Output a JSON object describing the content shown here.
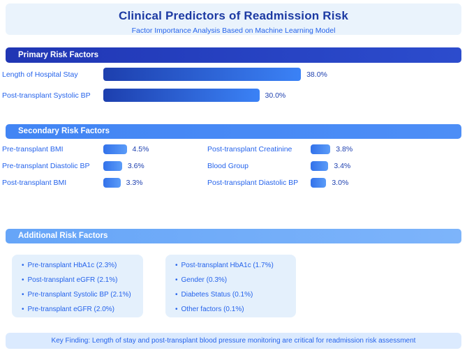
{
  "colors": {
    "title_text": "#1c3aa3",
    "body_text": "#2563eb",
    "value_text": "#1e40af",
    "hero_bg": "#eaf3fc",
    "secondary_header_bg": "#4285f4",
    "additional_header_bg": "#66a5f8",
    "bar_gradient_start": "#1d3fae",
    "bar_gradient_end": "#3b82f6",
    "small_bar_start": "#3372ea",
    "small_bar_end": "#5b9cf8",
    "panel_bg": "#e4f0fc",
    "footer_bg": "#dbeafe"
  },
  "chart_data": {
    "type": "bar",
    "title": "Clinical Predictors of Readmission Risk",
    "subtitle": "Factor Importance Analysis Based on Machine Learning Model",
    "value_unit": "%",
    "axis_max": 40,
    "legend": "none",
    "sections": [
      {
        "heading": "Primary Risk Factors",
        "items": [
          {
            "label": "Length of Hospital Stay",
            "value": 38.0,
            "display": "38.0%"
          },
          {
            "label": "Post-transplant Systolic BP",
            "value": 30.0,
            "display": "30.0%"
          }
        ]
      },
      {
        "heading": "Secondary Risk Factors",
        "columns": [
          [
            {
              "label": "Pre-transplant BMI",
              "value": 4.5,
              "display": "4.5%"
            },
            {
              "label": "Pre-transplant Diastolic BP",
              "value": 3.6,
              "display": "3.6%"
            },
            {
              "label": "Post-transplant BMI",
              "value": 3.3,
              "display": "3.3%"
            }
          ],
          [
            {
              "label": "Post-transplant Creatinine",
              "value": 3.8,
              "display": "3.8%"
            },
            {
              "label": "Blood Group",
              "value": 3.4,
              "display": "3.4%"
            },
            {
              "label": "Post-transplant Diastolic BP",
              "value": 3.0,
              "display": "3.0%"
            }
          ]
        ]
      },
      {
        "heading": "Additional Risk Factors",
        "columns": [
          [
            {
              "label": "Pre-transplant HbA1c",
              "value": 2.3,
              "display": "Pre-transplant HbA1c (2.3%)"
            },
            {
              "label": "Post-transplant eGFR",
              "value": 2.1,
              "display": "Post-transplant eGFR (2.1%)"
            },
            {
              "label": "Pre-transplant Systolic BP",
              "value": 2.1,
              "display": "Pre-transplant Systolic BP (2.1%)"
            },
            {
              "label": "Pre-transplant eGFR",
              "value": 2.0,
              "display": "Pre-transplant eGFR (2.0%)"
            }
          ],
          [
            {
              "label": "Post-transplant HbA1c",
              "value": 1.7,
              "display": "Post-transplant HbA1c (1.7%)"
            },
            {
              "label": "Gender",
              "value": 0.3,
              "display": "Gender (0.3%)"
            },
            {
              "label": "Diabetes Status",
              "value": 0.1,
              "display": "Diabetes Status (0.1%)"
            },
            {
              "label": "Other factors",
              "value": 0.1,
              "display": "Other factors (0.1%)"
            }
          ]
        ]
      }
    ],
    "key_finding": "Key Finding: Length of stay and post-transplant blood pressure monitoring are critical for readmission risk assessment"
  }
}
